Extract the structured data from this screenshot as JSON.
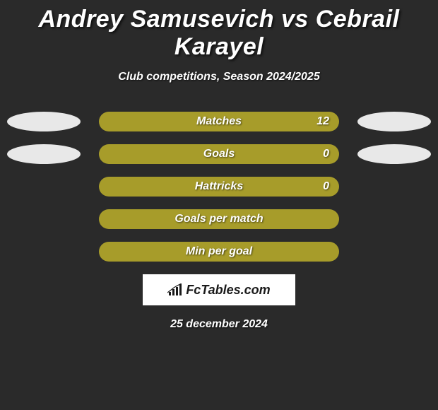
{
  "title": "Andrey Samusevich vs Cebrail Karayel",
  "subtitle": "Club competitions, Season 2024/2025",
  "date": "25 december 2024",
  "logo_text": "FcTables.com",
  "background_color": "#2a2a2a",
  "bar_color": "#a79c2a",
  "ellipse_color": "#e8e8e8",
  "title_color": "#ffffff",
  "text_color": "#ffffff",
  "logo_bg": "#ffffff",
  "logo_fg": "#1a1a1a",
  "title_fontsize": 34,
  "subtitle_fontsize": 16,
  "label_fontsize": 16,
  "stats": [
    {
      "label": "Matches",
      "value": "12",
      "show_left_ellipse": true,
      "show_right_ellipse": true,
      "show_value": true
    },
    {
      "label": "Goals",
      "value": "0",
      "show_left_ellipse": true,
      "show_right_ellipse": true,
      "show_value": true
    },
    {
      "label": "Hattricks",
      "value": "0",
      "show_left_ellipse": false,
      "show_right_ellipse": false,
      "show_value": true
    },
    {
      "label": "Goals per match",
      "value": "",
      "show_left_ellipse": false,
      "show_right_ellipse": false,
      "show_value": false
    },
    {
      "label": "Min per goal",
      "value": "",
      "show_left_ellipse": false,
      "show_right_ellipse": false,
      "show_value": false
    }
  ]
}
